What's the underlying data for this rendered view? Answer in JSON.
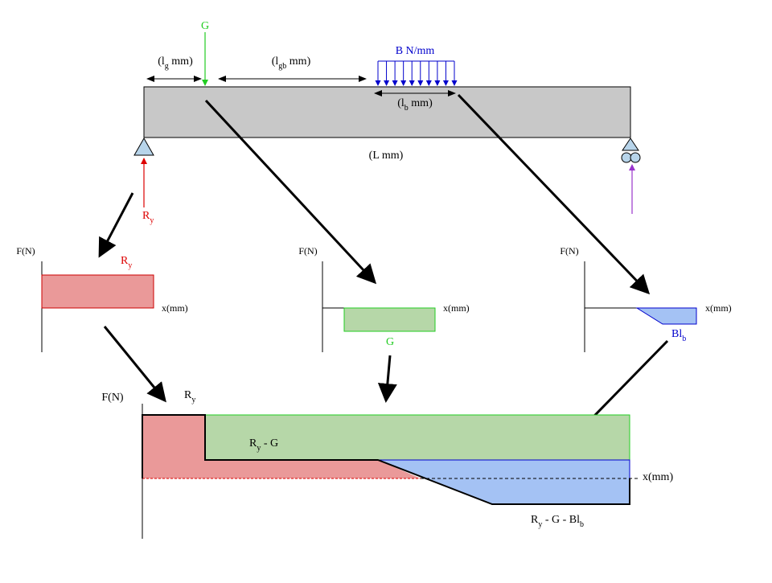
{
  "colors": {
    "beam_fill": "#c8c8c8",
    "red": "#dd0000",
    "red_fill": "#ea9999",
    "green": "#22cc22",
    "green_fill": "#b6d7a8",
    "blue": "#0000cc",
    "blue_fill": "#a4c2f4",
    "support_fill": "#b7d4ea",
    "purple": "#9933cc",
    "black": "#000000"
  },
  "beam": {
    "G": "G",
    "lg_main": "(l",
    "lg_sub": "g",
    "lg_tail": " mm)",
    "lgb_main": "(l",
    "lgb_sub": "gb",
    "lgb_tail": " mm)",
    "load_label": "B N/mm",
    "lb_main": "(l",
    "lb_sub": "b",
    "lb_tail": " mm)",
    "L_label": "(L mm)",
    "Ry_main": "R",
    "Ry_sub": "y"
  },
  "left_plot": {
    "y_axis": "F(N)",
    "x_axis": "x(mm)",
    "label_main": "R",
    "label_sub": "y"
  },
  "mid_plot": {
    "y_axis": "F(N)",
    "x_axis": "x(mm)",
    "label": "G"
  },
  "right_plot": {
    "y_axis": "F(N)",
    "x_axis": "x(mm)",
    "label_main": "Bl",
    "label_sub": "b"
  },
  "combined": {
    "y_axis": "F(N)",
    "x_axis": "x(mm)",
    "ry_main": "R",
    "ry_sub": "y",
    "ryg_main": "R",
    "ryg_sub": "y",
    "ryg_tail": " - G",
    "final_main": "R",
    "final_sub": "y",
    "final_tail": " - G - Bl",
    "final_sub2": "b"
  }
}
